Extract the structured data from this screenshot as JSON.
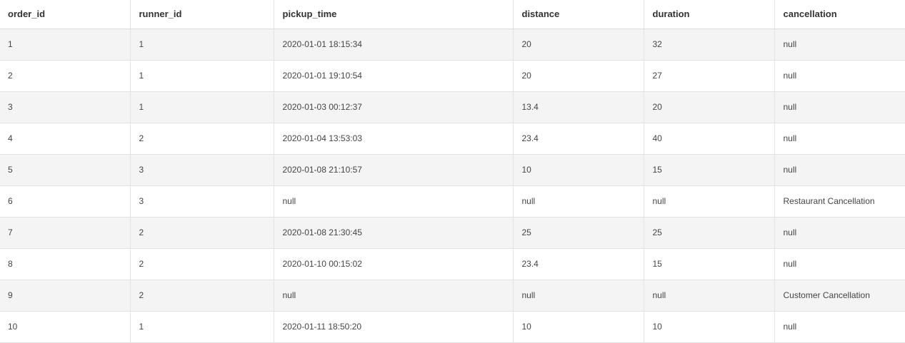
{
  "table": {
    "columns": [
      "order_id",
      "runner_id",
      "pickup_time",
      "distance",
      "duration",
      "cancellation"
    ],
    "rows": [
      [
        "1",
        "1",
        "2020-01-01 18:15:34",
        "20",
        "32",
        "null"
      ],
      [
        "2",
        "1",
        "2020-01-01 19:10:54",
        "20",
        "27",
        "null"
      ],
      [
        "3",
        "1",
        "2020-01-03 00:12:37",
        "13.4",
        "20",
        "null"
      ],
      [
        "4",
        "2",
        "2020-01-04 13:53:03",
        "23.4",
        "40",
        "null"
      ],
      [
        "5",
        "3",
        "2020-01-08 21:10:57",
        "10",
        "15",
        "null"
      ],
      [
        "6",
        "3",
        "null",
        "null",
        "null",
        "Restaurant Cancellation"
      ],
      [
        "7",
        "2",
        "2020-01-08 21:30:45",
        "25",
        "25",
        "null"
      ],
      [
        "8",
        "2",
        "2020-01-10 00:15:02",
        "23.4",
        "15",
        "null"
      ],
      [
        "9",
        "2",
        "null",
        "null",
        "null",
        "Customer Cancellation"
      ],
      [
        "10",
        "1",
        "2020-01-11 18:50:20",
        "10",
        "10",
        "null"
      ]
    ]
  }
}
